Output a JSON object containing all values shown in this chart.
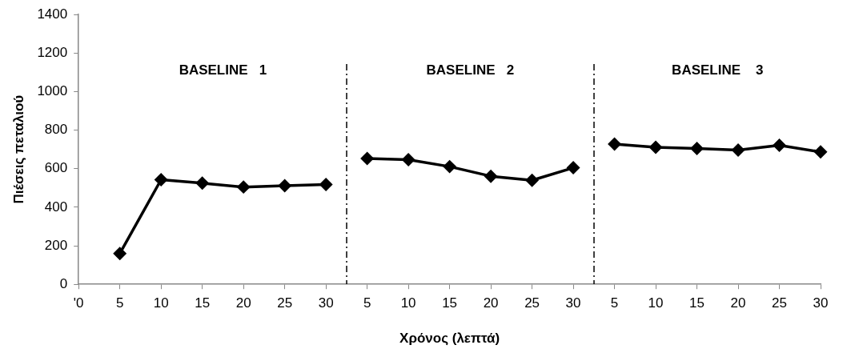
{
  "chart_data": {
    "type": "line",
    "xlabel": "Χρόνος (λεπτά)",
    "ylabel": "Πιέσεις πεταλιού",
    "annotations": [
      "BASELINE   1",
      "BASELINE   2",
      "BASELINE    3"
    ],
    "categories": [
      "'0",
      "5",
      "10",
      "15",
      "20",
      "25",
      "30",
      "5",
      "10",
      "15",
      "20",
      "25",
      "30",
      "5",
      "10",
      "15",
      "20",
      "25",
      "30"
    ],
    "ylim": [
      0,
      1400
    ],
    "yticks": [
      0,
      200,
      400,
      600,
      800,
      1000,
      1200,
      1400
    ],
    "series": [
      {
        "color": "#000000",
        "values": [
          null,
          160,
          543,
          525,
          505,
          512,
          518,
          null,
          null,
          null,
          null,
          null,
          null,
          null,
          null,
          null,
          null,
          null,
          null
        ]
      },
      {
        "color": "#000000",
        "values": [
          null,
          null,
          null,
          null,
          null,
          null,
          null,
          653,
          647,
          611,
          561,
          540,
          605,
          null,
          null,
          null,
          null,
          null,
          null
        ]
      },
      {
        "color": "#000000",
        "values": [
          null,
          null,
          null,
          null,
          null,
          null,
          null,
          null,
          null,
          null,
          null,
          null,
          null,
          728,
          711,
          705,
          697,
          722,
          687
        ]
      }
    ],
    "grid": false,
    "legend": false,
    "marker": "diamond",
    "line_style": "solid"
  }
}
